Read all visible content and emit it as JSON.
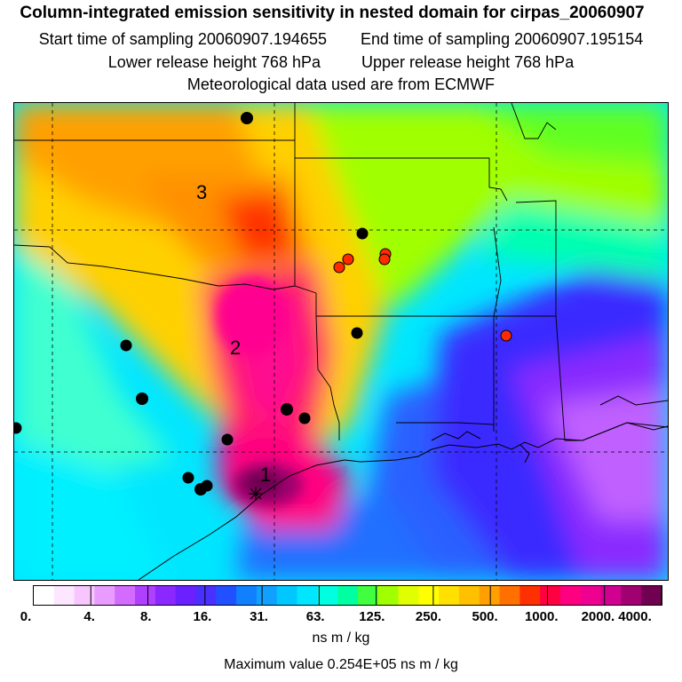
{
  "title": {
    "line1": "Column-integrated emission sensitivity in nested domain for cirpas_20060907",
    "start_label": "Start time of sampling",
    "start_value": "20060907.194655",
    "end_label": "End time of sampling",
    "end_value": "20060907.195154",
    "lower_label": "Lower release height",
    "lower_value": "768 hPa",
    "upper_label": "Upper release height",
    "upper_value": "768 hPa",
    "line4": "Meteorological data used are from ECMWF"
  },
  "map": {
    "region_labels": [
      "1",
      "2",
      "3"
    ],
    "release_marker": "star-cross-icon",
    "black_dot_color": "#000000",
    "red_dot_color": "#ff2a00"
  },
  "colorbar": {
    "colors": [
      "#ffffff",
      "#fde6ff",
      "#f7c6ff",
      "#e89cff",
      "#d36bff",
      "#b040ff",
      "#8a28ff",
      "#6a20ff",
      "#4a30ff",
      "#2050ff",
      "#1080ff",
      "#10a0ff",
      "#00c8ff",
      "#00e6ff",
      "#00ffe0",
      "#00ffa0",
      "#40ff40",
      "#a0ff00",
      "#e0ff00",
      "#ffff00",
      "#ffe000",
      "#ffc000",
      "#ffa000",
      "#ff7000",
      "#ff3000",
      "#ff0040",
      "#ff0080",
      "#f00090",
      "#d00090",
      "#a00070",
      "#700050"
    ],
    "tick_labels": [
      "0.",
      "4.",
      "8.",
      "16.",
      "31.",
      "63.",
      "125.",
      "250.",
      "500.",
      "1000.",
      "2000.",
      "4000."
    ]
  },
  "units": "ns m / kg",
  "max_value_label": "Maximum value",
  "max_value": "0.254E+05 ns m / kg"
}
